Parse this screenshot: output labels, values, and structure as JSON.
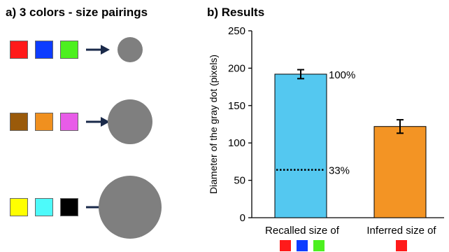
{
  "panel_a": {
    "title": "a) 3 colors - size pairings",
    "pairings": [
      {
        "colors": [
          "#ff1a1a",
          "#0d3cff",
          "#4cf01f"
        ],
        "dot_color": "#7f7f7f",
        "dot_size": "small"
      },
      {
        "colors": [
          "#9a5a0a",
          "#f0901f",
          "#e85ce8"
        ],
        "dot_color": "#7f7f7f",
        "dot_size": "medium"
      },
      {
        "colors": [
          "#ffff00",
          "#4dfafa",
          "#000000"
        ],
        "dot_color": "#7f7f7f",
        "dot_size": "large"
      }
    ],
    "arrow_color": "#1a2a4a"
  },
  "panel_b": {
    "title": "b) Results"
  },
  "chart_data": {
    "type": "bar",
    "categories": [
      "Recalled size of",
      "Inferred size of"
    ],
    "category_swatches": [
      [
        "#ff1a1a",
        "#0d3cff",
        "#4cf01f"
      ],
      [
        "#ff1a1a"
      ]
    ],
    "values": [
      192,
      122
    ],
    "error": [
      6,
      9
    ],
    "bar_colors": [
      "#54c8f0",
      "#f39424"
    ],
    "ylabel": "Diameter of the gray dot (pixels)",
    "ylim": [
      0,
      250
    ],
    "yticks": [
      0,
      50,
      100,
      150,
      200,
      250
    ],
    "annotations": [
      {
        "text": "100%",
        "y": 192,
        "style": "label"
      },
      {
        "text": "33%",
        "y": 64,
        "style": "dotted-line"
      }
    ],
    "grid": false
  }
}
